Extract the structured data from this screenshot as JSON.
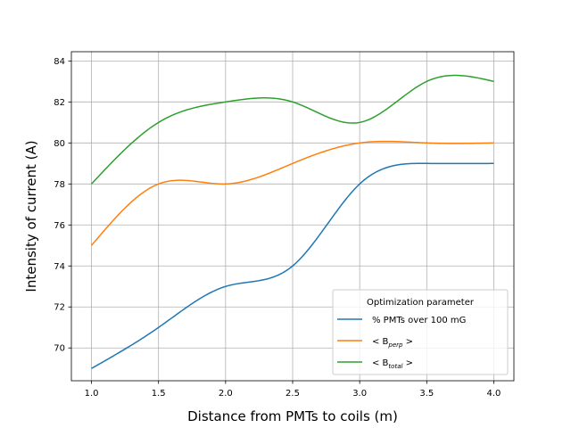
{
  "chart_data": {
    "type": "line",
    "title": "",
    "xlabel": "Distance from PMTs to coils (m)",
    "ylabel": "Intensity of current (A)",
    "xlim": [
      0.85,
      4.15
    ],
    "ylim": [
      68.4,
      84.45
    ],
    "xticks": [
      1.0,
      1.5,
      2.0,
      2.5,
      3.0,
      3.5,
      4.0
    ],
    "xtick_labels": [
      "1.0",
      "1.5",
      "2.0",
      "2.5",
      "3.0",
      "3.5",
      "4.0"
    ],
    "yticks": [
      70,
      72,
      74,
      76,
      78,
      80,
      82,
      84
    ],
    "ytick_labels": [
      "70",
      "72",
      "74",
      "76",
      "78",
      "80",
      "82",
      "84"
    ],
    "grid": true,
    "legend": {
      "title": "Optimization parameter",
      "placement": "lower-right"
    },
    "x": [
      1.0,
      1.5,
      2.0,
      2.5,
      3.0,
      3.5,
      4.0
    ],
    "series": [
      {
        "name": "% PMTs over 100 mG",
        "legend_base": "% PMTs over 100 mG",
        "legend_sub": "",
        "color": "#1f77b4",
        "values": [
          69,
          71,
          73,
          74,
          78,
          79,
          79
        ]
      },
      {
        "name": "< B_perp >",
        "legend_base": "< B",
        "legend_sub": "perp",
        "legend_suffix": " >",
        "color": "#ff7f0e",
        "values": [
          75,
          78,
          78,
          79,
          80,
          80,
          80
        ]
      },
      {
        "name": "< B_total >",
        "legend_base": "< B",
        "legend_sub": "total",
        "legend_suffix": " >",
        "color": "#2ca02c",
        "values": [
          78,
          81,
          82,
          82,
          81,
          83,
          83
        ]
      }
    ]
  }
}
